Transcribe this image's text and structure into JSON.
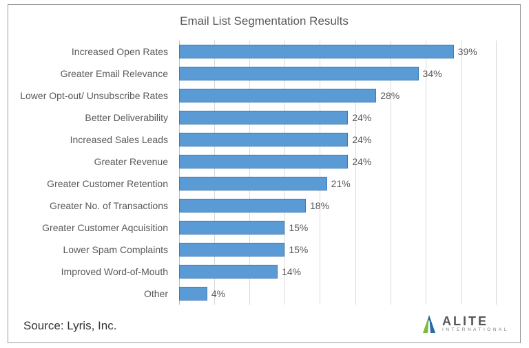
{
  "chart": {
    "type": "bar-horizontal",
    "title": "Email List Segmentation Results",
    "title_fontsize": 17,
    "title_color": "#595959",
    "categories": [
      "Increased Open Rates",
      "Greater Email Relevance",
      "Lower Opt-out/ Unsubscribe Rates",
      "Better Deliverability",
      "Increased Sales Leads",
      "Greater Revenue",
      "Greater Customer Retention",
      "Greater No. of Transactions",
      "Greater Customer Aqcuisition",
      "Lower Spam Complaints",
      "Improved Word-of-Mouth",
      "Other"
    ],
    "values": [
      39,
      34,
      28,
      24,
      24,
      24,
      21,
      18,
      15,
      15,
      14,
      4
    ],
    "value_suffix": "%",
    "bar_color": "#5b9bd5",
    "bar_border_color": "#3a7ab5",
    "label_fontsize": 14,
    "label_color": "#595959",
    "value_fontsize": 14,
    "value_color": "#595959",
    "xlim": [
      0,
      45
    ],
    "grid_step": 5,
    "grid_color": "#d9d9d9",
    "axis_color": "#bfbfbf",
    "background_color": "#ffffff",
    "frame_border_color": "#9a9a9a"
  },
  "source": {
    "label": "Source: Lyris, Inc.",
    "fontsize": 17,
    "color": "#333333"
  },
  "logo": {
    "name": "ALITE",
    "subtitle": "INTERNATIONAL",
    "mark_colors": {
      "left": "#7fba3c",
      "right": "#266aa6",
      "peak": "#266aa6"
    },
    "text_color": "#565656",
    "subtitle_color": "#7a7a7a"
  }
}
